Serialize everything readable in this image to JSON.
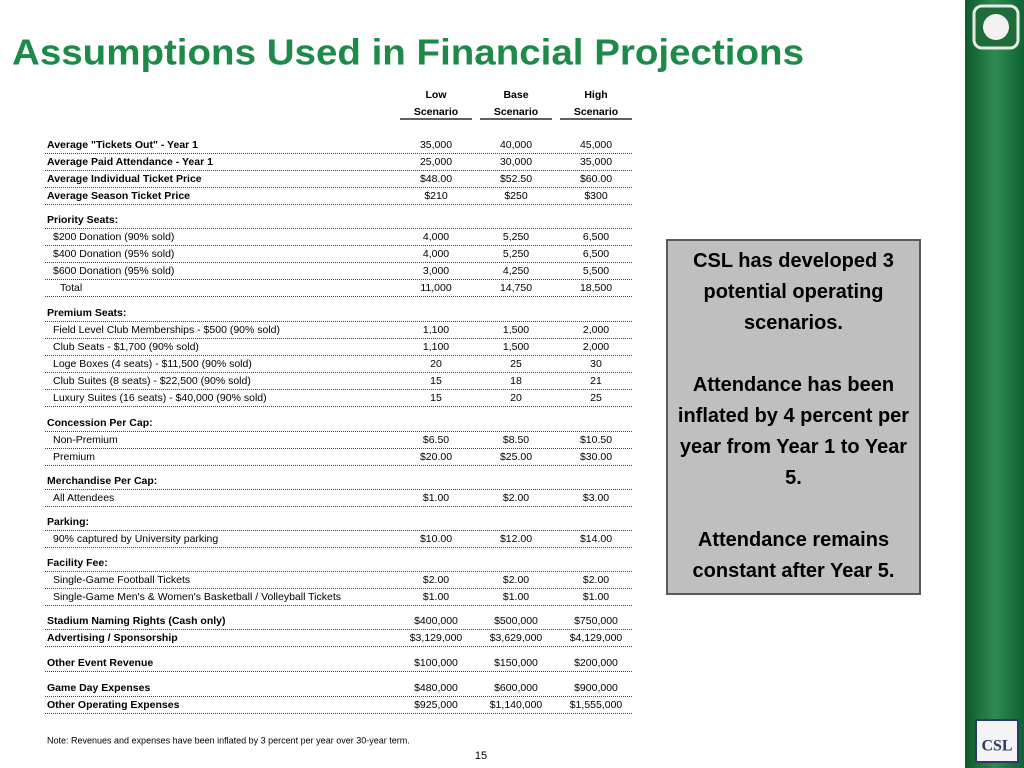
{
  "title": "Assumptions Used in Financial Projections",
  "table": {
    "headers": [
      [
        "Low",
        "Scenario"
      ],
      [
        "Base",
        "Scenario"
      ],
      [
        "High",
        "Scenario"
      ]
    ],
    "groups": [
      {
        "rows": [
          {
            "label": "Average \"Tickets Out\" - Year 1",
            "values": [
              "35,000",
              "40,000",
              "45,000"
            ]
          },
          {
            "label": "Average Paid Attendance - Year 1",
            "values": [
              "25,000",
              "30,000",
              "35,000"
            ]
          },
          {
            "label": "Average Individual Ticket Price",
            "values": [
              "$48.00",
              "$52.50",
              "$60.00"
            ]
          },
          {
            "label": "Average Season Ticket Price",
            "values": [
              "$210",
              "$250",
              "$300"
            ]
          }
        ]
      },
      {
        "title": "Priority Seats:",
        "rows": [
          {
            "label": "$200 Donation (90% sold)",
            "values": [
              "4,000",
              "5,250",
              "6,500"
            ]
          },
          {
            "label": "$400 Donation (95% sold)",
            "values": [
              "4,000",
              "5,250",
              "6,500"
            ]
          },
          {
            "label": "$600 Donation (95% sold)",
            "values": [
              "3,000",
              "4,250",
              "5,500"
            ]
          },
          {
            "label": "Total",
            "values": [
              "11,000",
              "14,750",
              "18,500"
            ]
          }
        ]
      },
      {
        "title": "Premium Seats:",
        "rows": [
          {
            "label": "Field Level Club Memberships - $500 (90% sold)",
            "values": [
              "1,100",
              "1,500",
              "2,000"
            ]
          },
          {
            "label": "Club Seats - $1,700 (90% sold)",
            "values": [
              "1,100",
              "1,500",
              "2,000"
            ]
          },
          {
            "label": "Loge Boxes (4 seats) - $11,500 (90% sold)",
            "values": [
              "20",
              "25",
              "30"
            ]
          },
          {
            "label": "Club Suites (8 seats) - $22,500 (90% sold)",
            "values": [
              "15",
              "18",
              "21"
            ]
          },
          {
            "label": "Luxury Suites (16 seats) - $40,000 (90% sold)",
            "values": [
              "15",
              "20",
              "25"
            ]
          }
        ]
      },
      {
        "title": "Concession Per Cap:",
        "rows": [
          {
            "label": "Non-Premium",
            "values": [
              "$6.50",
              "$8.50",
              "$10.50"
            ]
          },
          {
            "label": "Premium",
            "values": [
              "$20.00",
              "$25.00",
              "$30.00"
            ]
          }
        ]
      },
      {
        "title": "Merchandise Per Cap:",
        "rows": [
          {
            "label": "All Attendees",
            "values": [
              "$1.00",
              "$2.00",
              "$3.00"
            ]
          }
        ]
      },
      {
        "title": "Parking:",
        "rows": [
          {
            "label": "90% captured by University parking",
            "values": [
              "$10.00",
              "$12.00",
              "$14.00"
            ]
          }
        ]
      },
      {
        "title": "Facility Fee:",
        "rows": [
          {
            "label": "Single-Game Football Tickets",
            "values": [
              "$2.00",
              "$2.00",
              "$2.00"
            ]
          },
          {
            "label": "Single-Game Men's & Women's Basketball / Volleyball Tickets",
            "values": [
              "$1.00",
              "$1.00",
              "$1.00"
            ]
          }
        ]
      },
      {
        "rows": [
          {
            "label": "Stadium Naming Rights (Cash only)",
            "values": [
              "$400,000",
              "$500,000",
              "$750,000"
            ]
          },
          {
            "label": "Advertising / Sponsorship",
            "values": [
              "$3,129,000",
              "$3,629,000",
              "$4,129,000"
            ]
          }
        ]
      },
      {
        "rows": [
          {
            "label": "Other Event Revenue",
            "values": [
              "$100,000",
              "$150,000",
              "$200,000"
            ]
          }
        ]
      },
      {
        "rows": [
          {
            "label": "Game Day Expenses",
            "values": [
              "$480,000",
              "$600,000",
              "$900,000"
            ]
          },
          {
            "label": "Other Operating Expenses",
            "values": [
              "$925,000",
              "$1,140,000",
              "$1,555,000"
            ]
          }
        ]
      }
    ]
  },
  "sidebar": [
    "CSL has developed 3 potential operating scenarios.",
    "Attendance has been inflated by 4 percent per year from Year 1 to Year 5.",
    "Attendance remains constant after Year 5."
  ],
  "note": "Note: Revenues and expenses have been inflated by 3 percent per year over 30-year term.",
  "page_number": "15",
  "logo": "CSL"
}
